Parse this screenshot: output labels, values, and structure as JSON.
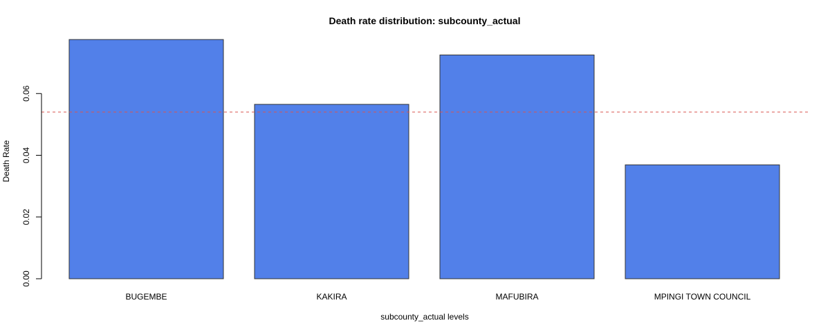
{
  "chart_data": {
    "type": "bar",
    "title": "Death rate distribution: subcounty_actual",
    "xlabel": "subcounty_actual levels",
    "ylabel": "Death Rate",
    "categories": [
      "BUGEMBE",
      "KAKIRA",
      "MAFUBIRA",
      "MPINGI TOWN COUNCIL"
    ],
    "values": [
      0.0775,
      0.0565,
      0.0725,
      0.0369
    ],
    "ylim": [
      0,
      0.08
    ],
    "yticks": [
      "0.00",
      "0.02",
      "0.04",
      "0.06"
    ],
    "reference_line": {
      "value": 0.054,
      "style": "dashed",
      "color": "#d9534f"
    },
    "bar_color": "#5280e9",
    "bar_border": "#333333",
    "grid": false,
    "legend": "none"
  }
}
